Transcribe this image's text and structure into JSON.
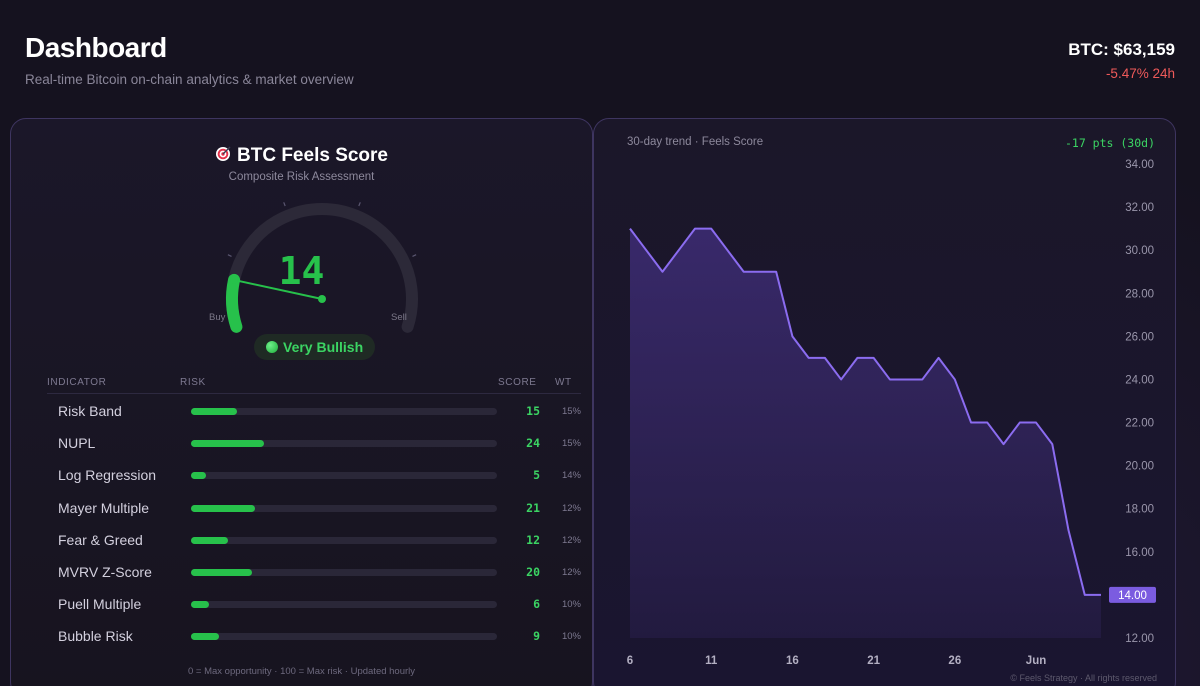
{
  "header": {
    "title": "Dashboard",
    "subtitle": "Real-time Bitcoin on-chain analytics & market overview",
    "price": "BTC: $63,159",
    "price_change": "-5.47% 24h"
  },
  "score_card": {
    "title": "BTC Feels Score",
    "title_icon": "target-icon",
    "subtitle": "Composite Risk Assessment",
    "score": "14",
    "score_value": 14,
    "gauge_min_label": "Buy",
    "gauge_max_label": "Sell",
    "sentiment": "Very Bullish",
    "columns": {
      "indicator": "INDICATOR",
      "risk": "RISK",
      "score": "SCORE",
      "wt": "WT"
    },
    "indicators": [
      {
        "name": "Risk Band",
        "score": "15",
        "score_value": 15,
        "wt": "15%"
      },
      {
        "name": "NUPL",
        "score": "24",
        "score_value": 24,
        "wt": "15%"
      },
      {
        "name": "Log Regression",
        "score": "5",
        "score_value": 5,
        "wt": "14%"
      },
      {
        "name": "Mayer Multiple",
        "score": "21",
        "score_value": 21,
        "wt": "12%"
      },
      {
        "name": "Fear & Greed",
        "score": "12",
        "score_value": 12,
        "wt": "12%"
      },
      {
        "name": "MVRV Z-Score",
        "score": "20",
        "score_value": 20,
        "wt": "12%"
      },
      {
        "name": "Puell Multiple",
        "score": "6",
        "score_value": 6,
        "wt": "10%"
      },
      {
        "name": "Bubble Risk",
        "score": "9",
        "score_value": 9,
        "wt": "10%"
      }
    ],
    "footnote": "0 = Max opportunity · 100 = Max risk · Updated hourly"
  },
  "trend_card": {
    "label": "30-day trend · Feels Score",
    "delta": "-17 pts (30d)",
    "copyright": "© Feels Strategy · All rights reserved"
  },
  "chart_data": {
    "type": "area",
    "x_ticks": [
      "6",
      "11",
      "16",
      "21",
      "26",
      "Jun"
    ],
    "y_ticks": [
      "34.00",
      "32.00",
      "30.00",
      "28.00",
      "26.00",
      "24.00",
      "22.00",
      "20.00",
      "18.00",
      "16.00",
      "14.00",
      "12.00"
    ],
    "ylim": [
      12,
      34
    ],
    "values": [
      31,
      30,
      29,
      30,
      31,
      31,
      30,
      29,
      29,
      29,
      26,
      25,
      25,
      24,
      25,
      25,
      24,
      24,
      24,
      25,
      24,
      22,
      22,
      21,
      22,
      22,
      21,
      17,
      14,
      14
    ],
    "last_value_label": "14.00",
    "colors": {
      "line": "#8b6cf0",
      "fill": "#3a2a6e",
      "badge": "#7b5ce0"
    }
  }
}
